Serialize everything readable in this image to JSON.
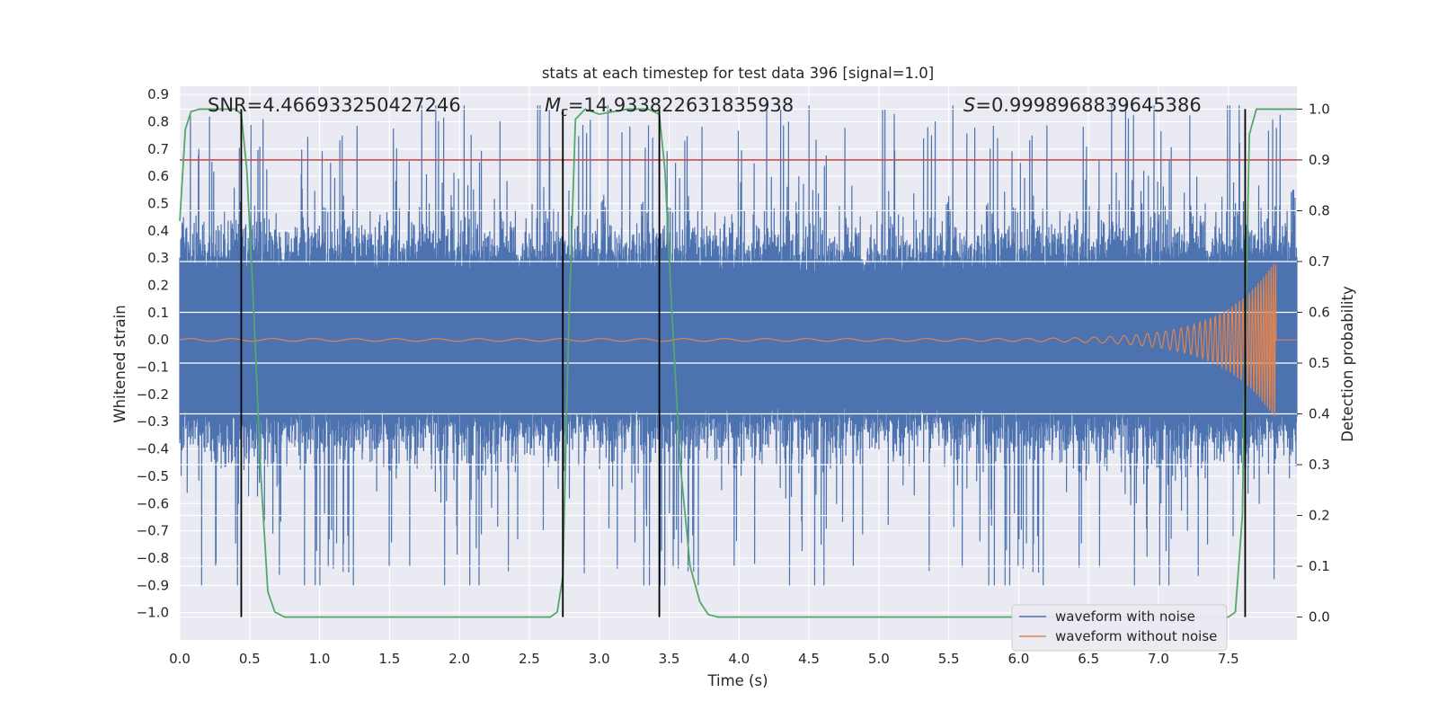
{
  "chart_data": {
    "type": "line",
    "title": "stats at each timestep for test data 396 [signal=1.0]",
    "xlabel": "Time (s)",
    "ylabel_left": "Whitened strain",
    "ylabel_right": "Detection probability",
    "xlim": [
      0.0,
      7.99
    ],
    "ylim_left": [
      -1.1,
      0.93
    ],
    "ylim_right": [
      -0.045,
      1.045
    ],
    "x_ticks": [
      "0.0",
      "0.5",
      "1.0",
      "1.5",
      "2.0",
      "2.5",
      "3.0",
      "3.5",
      "4.0",
      "4.5",
      "5.0",
      "5.5",
      "6.0",
      "6.5",
      "7.0",
      "7.5"
    ],
    "y_ticks_left": [
      "0.9",
      "0.8",
      "0.7",
      "0.6",
      "0.5",
      "0.4",
      "0.3",
      "0.2",
      "0.1",
      "0.0",
      "−0.1",
      "−0.2",
      "−0.3",
      "−0.4",
      "−0.5",
      "−0.6",
      "−0.7",
      "−0.8",
      "−0.9",
      "−1.0"
    ],
    "y_ticks_right": [
      "0.0",
      "0.1",
      "0.2",
      "0.3",
      "0.4",
      "0.5",
      "0.6",
      "0.7",
      "0.8",
      "0.9",
      "1.0"
    ],
    "annotations": {
      "snr": "SNR=4.466933250427246",
      "mc_symbol": "M",
      "mc_sub": "c",
      "mc_value": "=14.933822631835938",
      "s_symbol": "S",
      "s_value": "=0.9998968839645386"
    },
    "threshold": 0.9,
    "vertical_lines": [
      0.44,
      2.74,
      3.43,
      7.62
    ],
    "noise_envelope": [
      [
        0.0,
        0.28
      ],
      [
        0.4,
        0.3
      ],
      [
        1.0,
        0.28
      ],
      [
        2.0,
        0.29
      ],
      [
        3.0,
        0.28
      ],
      [
        4.0,
        0.28
      ],
      [
        5.0,
        0.27
      ],
      [
        6.0,
        0.28
      ],
      [
        7.0,
        0.3
      ],
      [
        7.99,
        0.3
      ]
    ],
    "chirp": {
      "amp_start": 0.005,
      "amp_peak": 0.28,
      "peak_time": 7.82,
      "end_time": 7.84,
      "cycles_per_second_start": 3.4,
      "cycles_per_second_end": 60
    },
    "detection_probability": {
      "x": [
        0.0,
        0.04,
        0.08,
        0.14,
        0.2,
        0.3,
        0.4,
        0.44,
        0.48,
        0.53,
        0.58,
        0.63,
        0.68,
        0.75,
        0.85,
        1.2,
        2.0,
        2.5,
        2.65,
        2.7,
        2.74,
        2.78,
        2.83,
        2.9,
        3.0,
        3.2,
        3.35,
        3.43,
        3.47,
        3.52,
        3.58,
        3.65,
        3.72,
        3.78,
        3.85,
        4.0,
        5.0,
        6.0,
        7.0,
        7.5,
        7.55,
        7.6,
        7.62,
        7.65,
        7.7,
        7.8,
        7.99
      ],
      "y": [
        0.78,
        0.96,
        0.995,
        1.0,
        1.0,
        1.0,
        1.0,
        0.99,
        0.88,
        0.6,
        0.28,
        0.05,
        0.01,
        0.0,
        0.0,
        0.0,
        0.0,
        0.0,
        0.0,
        0.01,
        0.08,
        0.55,
        0.98,
        1.0,
        0.99,
        1.0,
        1.0,
        0.99,
        0.88,
        0.6,
        0.3,
        0.1,
        0.03,
        0.005,
        0.0,
        0.0,
        0.0,
        0.0,
        0.0,
        0.0,
        0.01,
        0.2,
        0.55,
        0.95,
        1.0,
        1.0,
        1.0
      ]
    },
    "legend": {
      "position": "lower-right",
      "items": [
        {
          "label": "waveform with noise",
          "color": "#4c72b0"
        },
        {
          "label": "waveform without noise",
          "color": "#dd8452"
        }
      ]
    },
    "colors": {
      "noisy": "#4c72b0",
      "clean": "#dd8452",
      "probability": "#55a868",
      "threshold": "#c44e52",
      "vline": "#000000",
      "plot_bg": "#eaeaf2",
      "grid": "#ffffff"
    }
  }
}
